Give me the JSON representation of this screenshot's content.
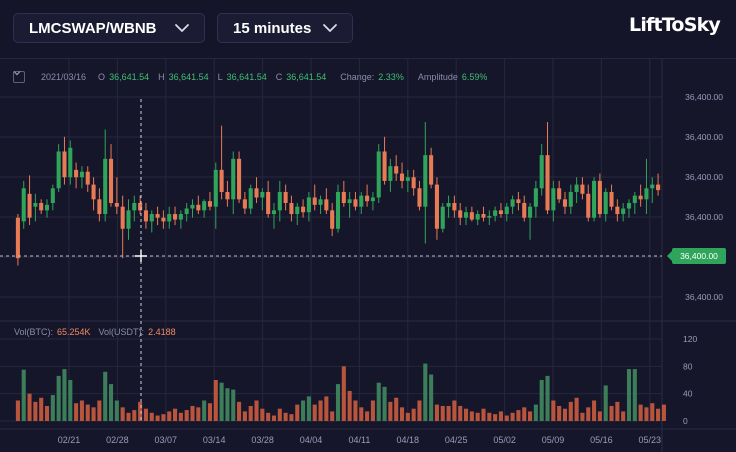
{
  "toolbar": {
    "pair": "LMCSWAP/WBNB",
    "interval": "15 minutes",
    "logo": "LiftToSky"
  },
  "info": {
    "date": "2021/03/16",
    "open_label": "O",
    "open": "36,641.54",
    "high_label": "H",
    "high": "36,641.54",
    "low_label": "L",
    "low": "36,641.54",
    "close_label": "C",
    "close": "36,641.54",
    "change_label": "Change:",
    "change": "2.33%",
    "amplitude_label": "Amplitude",
    "amplitude": "6.59%"
  },
  "volume_info": {
    "btc_label": "Vol(BTC):",
    "btc": "65.254K",
    "usdt_label": "Vol(USDT):",
    "usdt": "2.4188"
  },
  "colors": {
    "background": "#16162b",
    "up": "#2fa55b",
    "down": "#e87a55",
    "vol_up": "#3d7e5a",
    "vol_down": "#b8553c",
    "price_tag": "#2fa55b",
    "grid": "#25273d"
  },
  "chart_data": {
    "type": "candlestick",
    "price_axis_labels": [
      "36,400.00",
      "36,400.00",
      "36,400.00",
      "36,400.00",
      "36,400.00",
      "36,400.00"
    ],
    "current_price": "36,400.00",
    "volume_axis_labels": [
      "120",
      "80",
      "40",
      "0"
    ],
    "x_labels": [
      "02/21",
      "02/28",
      "03/07",
      "03/14",
      "03/28",
      "04/04",
      "04/11",
      "04/18",
      "04/25",
      "05/02",
      "05/09",
      "05/16",
      "05/23"
    ],
    "crosshair": true,
    "grid": true,
    "candles": [
      {
        "o": 0.42,
        "h": 0.44,
        "l": 0.16,
        "c": 0.2
      },
      {
        "o": 0.4,
        "h": 0.62,
        "l": 0.36,
        "c": 0.58
      },
      {
        "o": 0.55,
        "h": 0.65,
        "l": 0.38,
        "c": 0.42
      },
      {
        "o": 0.48,
        "h": 0.55,
        "l": 0.4,
        "c": 0.5
      },
      {
        "o": 0.5,
        "h": 0.52,
        "l": 0.44,
        "c": 0.46
      },
      {
        "o": 0.46,
        "h": 0.52,
        "l": 0.42,
        "c": 0.49
      },
      {
        "o": 0.5,
        "h": 0.6,
        "l": 0.46,
        "c": 0.58
      },
      {
        "o": 0.58,
        "h": 0.82,
        "l": 0.56,
        "c": 0.78
      },
      {
        "o": 0.78,
        "h": 0.86,
        "l": 0.6,
        "c": 0.64
      },
      {
        "o": 0.64,
        "h": 0.84,
        "l": 0.6,
        "c": 0.8
      },
      {
        "o": 0.68,
        "h": 0.72,
        "l": 0.58,
        "c": 0.64
      },
      {
        "o": 0.64,
        "h": 0.7,
        "l": 0.58,
        "c": 0.67
      },
      {
        "o": 0.67,
        "h": 0.7,
        "l": 0.56,
        "c": 0.6
      },
      {
        "o": 0.6,
        "h": 0.64,
        "l": 0.46,
        "c": 0.52
      },
      {
        "o": 0.52,
        "h": 0.58,
        "l": 0.4,
        "c": 0.44
      },
      {
        "o": 0.44,
        "h": 0.9,
        "l": 0.4,
        "c": 0.74
      },
      {
        "o": 0.74,
        "h": 0.82,
        "l": 0.48,
        "c": 0.5
      },
      {
        "o": 0.5,
        "h": 0.64,
        "l": 0.44,
        "c": 0.48
      },
      {
        "o": 0.48,
        "h": 0.54,
        "l": 0.2,
        "c": 0.36
      },
      {
        "o": 0.36,
        "h": 0.52,
        "l": 0.3,
        "c": 0.46
      },
      {
        "o": 0.46,
        "h": 0.54,
        "l": 0.4,
        "c": 0.5
      },
      {
        "o": 0.5,
        "h": 0.54,
        "l": 0.44,
        "c": 0.46
      },
      {
        "o": 0.46,
        "h": 0.5,
        "l": 0.36,
        "c": 0.4
      },
      {
        "o": 0.4,
        "h": 0.46,
        "l": 0.34,
        "c": 0.44
      },
      {
        "o": 0.44,
        "h": 0.48,
        "l": 0.38,
        "c": 0.42
      },
      {
        "o": 0.42,
        "h": 0.46,
        "l": 0.36,
        "c": 0.4
      },
      {
        "o": 0.4,
        "h": 0.48,
        "l": 0.36,
        "c": 0.44
      },
      {
        "o": 0.44,
        "h": 0.48,
        "l": 0.38,
        "c": 0.41
      },
      {
        "o": 0.41,
        "h": 0.46,
        "l": 0.36,
        "c": 0.44
      },
      {
        "o": 0.44,
        "h": 0.5,
        "l": 0.4,
        "c": 0.47
      },
      {
        "o": 0.47,
        "h": 0.52,
        "l": 0.42,
        "c": 0.49
      },
      {
        "o": 0.49,
        "h": 0.54,
        "l": 0.44,
        "c": 0.46
      },
      {
        "o": 0.46,
        "h": 0.52,
        "l": 0.42,
        "c": 0.51
      },
      {
        "o": 0.51,
        "h": 0.56,
        "l": 0.46,
        "c": 0.48
      },
      {
        "o": 0.48,
        "h": 0.72,
        "l": 0.36,
        "c": 0.68
      },
      {
        "o": 0.68,
        "h": 0.92,
        "l": 0.52,
        "c": 0.56
      },
      {
        "o": 0.56,
        "h": 0.62,
        "l": 0.48,
        "c": 0.52
      },
      {
        "o": 0.52,
        "h": 0.78,
        "l": 0.44,
        "c": 0.74
      },
      {
        "o": 0.74,
        "h": 0.78,
        "l": 0.5,
        "c": 0.52
      },
      {
        "o": 0.52,
        "h": 0.56,
        "l": 0.44,
        "c": 0.47
      },
      {
        "o": 0.47,
        "h": 0.6,
        "l": 0.44,
        "c": 0.58
      },
      {
        "o": 0.58,
        "h": 0.64,
        "l": 0.5,
        "c": 0.53
      },
      {
        "o": 0.53,
        "h": 0.58,
        "l": 0.46,
        "c": 0.56
      },
      {
        "o": 0.56,
        "h": 0.62,
        "l": 0.42,
        "c": 0.44
      },
      {
        "o": 0.44,
        "h": 0.5,
        "l": 0.36,
        "c": 0.46
      },
      {
        "o": 0.46,
        "h": 0.62,
        "l": 0.4,
        "c": 0.56
      },
      {
        "o": 0.56,
        "h": 0.6,
        "l": 0.46,
        "c": 0.5
      },
      {
        "o": 0.5,
        "h": 0.54,
        "l": 0.4,
        "c": 0.44
      },
      {
        "o": 0.44,
        "h": 0.5,
        "l": 0.38,
        "c": 0.48
      },
      {
        "o": 0.48,
        "h": 0.52,
        "l": 0.42,
        "c": 0.45
      },
      {
        "o": 0.45,
        "h": 0.56,
        "l": 0.4,
        "c": 0.53
      },
      {
        "o": 0.53,
        "h": 0.6,
        "l": 0.46,
        "c": 0.49
      },
      {
        "o": 0.49,
        "h": 0.54,
        "l": 0.44,
        "c": 0.52
      },
      {
        "o": 0.52,
        "h": 0.58,
        "l": 0.44,
        "c": 0.46
      },
      {
        "o": 0.46,
        "h": 0.5,
        "l": 0.32,
        "c": 0.36
      },
      {
        "o": 0.36,
        "h": 0.6,
        "l": 0.34,
        "c": 0.56
      },
      {
        "o": 0.56,
        "h": 0.62,
        "l": 0.48,
        "c": 0.5
      },
      {
        "o": 0.5,
        "h": 0.56,
        "l": 0.42,
        "c": 0.52
      },
      {
        "o": 0.52,
        "h": 0.56,
        "l": 0.46,
        "c": 0.48
      },
      {
        "o": 0.48,
        "h": 0.56,
        "l": 0.44,
        "c": 0.54
      },
      {
        "o": 0.54,
        "h": 0.6,
        "l": 0.48,
        "c": 0.51
      },
      {
        "o": 0.51,
        "h": 0.56,
        "l": 0.46,
        "c": 0.53
      },
      {
        "o": 0.53,
        "h": 0.82,
        "l": 0.5,
        "c": 0.78
      },
      {
        "o": 0.78,
        "h": 0.86,
        "l": 0.6,
        "c": 0.62
      },
      {
        "o": 0.62,
        "h": 0.74,
        "l": 0.56,
        "c": 0.7
      },
      {
        "o": 0.7,
        "h": 0.76,
        "l": 0.62,
        "c": 0.66
      },
      {
        "o": 0.66,
        "h": 0.72,
        "l": 0.58,
        "c": 0.62
      },
      {
        "o": 0.62,
        "h": 0.68,
        "l": 0.56,
        "c": 0.64
      },
      {
        "o": 0.64,
        "h": 0.68,
        "l": 0.54,
        "c": 0.58
      },
      {
        "o": 0.58,
        "h": 0.62,
        "l": 0.46,
        "c": 0.48
      },
      {
        "o": 0.48,
        "h": 0.94,
        "l": 0.28,
        "c": 0.76
      },
      {
        "o": 0.76,
        "h": 0.8,
        "l": 0.58,
        "c": 0.6
      },
      {
        "o": 0.6,
        "h": 0.64,
        "l": 0.3,
        "c": 0.36
      },
      {
        "o": 0.36,
        "h": 0.5,
        "l": 0.34,
        "c": 0.48
      },
      {
        "o": 0.48,
        "h": 0.54,
        "l": 0.42,
        "c": 0.5
      },
      {
        "o": 0.5,
        "h": 0.54,
        "l": 0.42,
        "c": 0.46
      },
      {
        "o": 0.46,
        "h": 0.5,
        "l": 0.38,
        "c": 0.42
      },
      {
        "o": 0.42,
        "h": 0.48,
        "l": 0.38,
        "c": 0.45
      },
      {
        "o": 0.45,
        "h": 0.48,
        "l": 0.4,
        "c": 0.41
      },
      {
        "o": 0.41,
        "h": 0.46,
        "l": 0.38,
        "c": 0.44
      },
      {
        "o": 0.44,
        "h": 0.48,
        "l": 0.4,
        "c": 0.42
      },
      {
        "o": 0.42,
        "h": 0.46,
        "l": 0.38,
        "c": 0.43
      },
      {
        "o": 0.43,
        "h": 0.48,
        "l": 0.4,
        "c": 0.46
      },
      {
        "o": 0.46,
        "h": 0.5,
        "l": 0.42,
        "c": 0.44
      },
      {
        "o": 0.44,
        "h": 0.5,
        "l": 0.4,
        "c": 0.48
      },
      {
        "o": 0.48,
        "h": 0.54,
        "l": 0.44,
        "c": 0.52
      },
      {
        "o": 0.52,
        "h": 0.56,
        "l": 0.46,
        "c": 0.5
      },
      {
        "o": 0.5,
        "h": 0.54,
        "l": 0.4,
        "c": 0.42
      },
      {
        "o": 0.42,
        "h": 0.5,
        "l": 0.3,
        "c": 0.48
      },
      {
        "o": 0.48,
        "h": 0.62,
        "l": 0.42,
        "c": 0.58
      },
      {
        "o": 0.58,
        "h": 0.82,
        "l": 0.54,
        "c": 0.76
      },
      {
        "o": 0.76,
        "h": 0.94,
        "l": 0.44,
        "c": 0.46
      },
      {
        "o": 0.46,
        "h": 0.62,
        "l": 0.4,
        "c": 0.58
      },
      {
        "o": 0.58,
        "h": 0.62,
        "l": 0.5,
        "c": 0.52
      },
      {
        "o": 0.52,
        "h": 0.56,
        "l": 0.44,
        "c": 0.48
      },
      {
        "o": 0.48,
        "h": 0.6,
        "l": 0.44,
        "c": 0.56
      },
      {
        "o": 0.56,
        "h": 0.64,
        "l": 0.5,
        "c": 0.6
      },
      {
        "o": 0.6,
        "h": 0.64,
        "l": 0.52,
        "c": 0.55
      },
      {
        "o": 0.55,
        "h": 0.6,
        "l": 0.4,
        "c": 0.42
      },
      {
        "o": 0.42,
        "h": 0.64,
        "l": 0.4,
        "c": 0.62
      },
      {
        "o": 0.62,
        "h": 0.66,
        "l": 0.42,
        "c": 0.44
      },
      {
        "o": 0.44,
        "h": 0.58,
        "l": 0.4,
        "c": 0.56
      },
      {
        "o": 0.56,
        "h": 0.6,
        "l": 0.46,
        "c": 0.48
      },
      {
        "o": 0.48,
        "h": 0.52,
        "l": 0.4,
        "c": 0.44
      },
      {
        "o": 0.44,
        "h": 0.5,
        "l": 0.4,
        "c": 0.47
      },
      {
        "o": 0.47,
        "h": 0.52,
        "l": 0.42,
        "c": 0.5
      },
      {
        "o": 0.5,
        "h": 0.56,
        "l": 0.44,
        "c": 0.54
      },
      {
        "o": 0.54,
        "h": 0.6,
        "l": 0.48,
        "c": 0.52
      },
      {
        "o": 0.52,
        "h": 0.74,
        "l": 0.44,
        "c": 0.58
      },
      {
        "o": 0.58,
        "h": 0.64,
        "l": 0.5,
        "c": 0.6
      },
      {
        "o": 0.6,
        "h": 0.66,
        "l": 0.54,
        "c": 0.57
      }
    ],
    "volumes": [
      {
        "v": 30,
        "up": false
      },
      {
        "v": 75,
        "up": true
      },
      {
        "v": 40,
        "up": false
      },
      {
        "v": 28,
        "up": false
      },
      {
        "v": 34,
        "up": false
      },
      {
        "v": 22,
        "up": false
      },
      {
        "v": 38,
        "up": true
      },
      {
        "v": 66,
        "up": true
      },
      {
        "v": 76,
        "up": true
      },
      {
        "v": 60,
        "up": true
      },
      {
        "v": 26,
        "up": false
      },
      {
        "v": 30,
        "up": false
      },
      {
        "v": 24,
        "up": false
      },
      {
        "v": 20,
        "up": false
      },
      {
        "v": 30,
        "up": false
      },
      {
        "v": 72,
        "up": true
      },
      {
        "v": 54,
        "up": true
      },
      {
        "v": 30,
        "up": true
      },
      {
        "v": 20,
        "up": false
      },
      {
        "v": 12,
        "up": false
      },
      {
        "v": 16,
        "up": false
      },
      {
        "v": 28,
        "up": false
      },
      {
        "v": 18,
        "up": false
      },
      {
        "v": 12,
        "up": false
      },
      {
        "v": 8,
        "up": false
      },
      {
        "v": 10,
        "up": false
      },
      {
        "v": 14,
        "up": false
      },
      {
        "v": 18,
        "up": false
      },
      {
        "v": 12,
        "up": false
      },
      {
        "v": 16,
        "up": false
      },
      {
        "v": 22,
        "up": false
      },
      {
        "v": 20,
        "up": false
      },
      {
        "v": 30,
        "up": true
      },
      {
        "v": 26,
        "up": false
      },
      {
        "v": 60,
        "up": false
      },
      {
        "v": 56,
        "up": true
      },
      {
        "v": 48,
        "up": true
      },
      {
        "v": 46,
        "up": true
      },
      {
        "v": 28,
        "up": false
      },
      {
        "v": 14,
        "up": false
      },
      {
        "v": 22,
        "up": false
      },
      {
        "v": 30,
        "up": false
      },
      {
        "v": 18,
        "up": false
      },
      {
        "v": 12,
        "up": false
      },
      {
        "v": 8,
        "up": false
      },
      {
        "v": 18,
        "up": false
      },
      {
        "v": 12,
        "up": false
      },
      {
        "v": 10,
        "up": false
      },
      {
        "v": 24,
        "up": false
      },
      {
        "v": 30,
        "up": true
      },
      {
        "v": 36,
        "up": true
      },
      {
        "v": 24,
        "up": false
      },
      {
        "v": 30,
        "up": false
      },
      {
        "v": 36,
        "up": false
      },
      {
        "v": 14,
        "up": false
      },
      {
        "v": 54,
        "up": true
      },
      {
        "v": 80,
        "up": false
      },
      {
        "v": 44,
        "up": false
      },
      {
        "v": 30,
        "up": false
      },
      {
        "v": 20,
        "up": false
      },
      {
        "v": 14,
        "up": false
      },
      {
        "v": 30,
        "up": false
      },
      {
        "v": 56,
        "up": true
      },
      {
        "v": 50,
        "up": true
      },
      {
        "v": 28,
        "up": false
      },
      {
        "v": 34,
        "up": false
      },
      {
        "v": 20,
        "up": false
      },
      {
        "v": 12,
        "up": false
      },
      {
        "v": 18,
        "up": false
      },
      {
        "v": 30,
        "up": false
      },
      {
        "v": 84,
        "up": true
      },
      {
        "v": 68,
        "up": true
      },
      {
        "v": 24,
        "up": false
      },
      {
        "v": 22,
        "up": false
      },
      {
        "v": 22,
        "up": false
      },
      {
        "v": 30,
        "up": false
      },
      {
        "v": 22,
        "up": false
      },
      {
        "v": 18,
        "up": false
      },
      {
        "v": 14,
        "up": false
      },
      {
        "v": 12,
        "up": false
      },
      {
        "v": 18,
        "up": false
      },
      {
        "v": 12,
        "up": false
      },
      {
        "v": 10,
        "up": false
      },
      {
        "v": 14,
        "up": false
      },
      {
        "v": 8,
        "up": false
      },
      {
        "v": 12,
        "up": false
      },
      {
        "v": 16,
        "up": false
      },
      {
        "v": 20,
        "up": false
      },
      {
        "v": 14,
        "up": false
      },
      {
        "v": 24,
        "up": true
      },
      {
        "v": 60,
        "up": true
      },
      {
        "v": 66,
        "up": true
      },
      {
        "v": 30,
        "up": false
      },
      {
        "v": 22,
        "up": false
      },
      {
        "v": 18,
        "up": false
      },
      {
        "v": 28,
        "up": false
      },
      {
        "v": 34,
        "up": false
      },
      {
        "v": 12,
        "up": false
      },
      {
        "v": 20,
        "up": false
      },
      {
        "v": 30,
        "up": false
      },
      {
        "v": 14,
        "up": false
      },
      {
        "v": 52,
        "up": true
      },
      {
        "v": 22,
        "up": false
      },
      {
        "v": 28,
        "up": false
      },
      {
        "v": 14,
        "up": false
      },
      {
        "v": 76,
        "up": true
      },
      {
        "v": 76,
        "up": true
      },
      {
        "v": 24,
        "up": false
      },
      {
        "v": 20,
        "up": false
      },
      {
        "v": 26,
        "up": false
      },
      {
        "v": 18,
        "up": false
      },
      {
        "v": 24,
        "up": false
      }
    ]
  }
}
